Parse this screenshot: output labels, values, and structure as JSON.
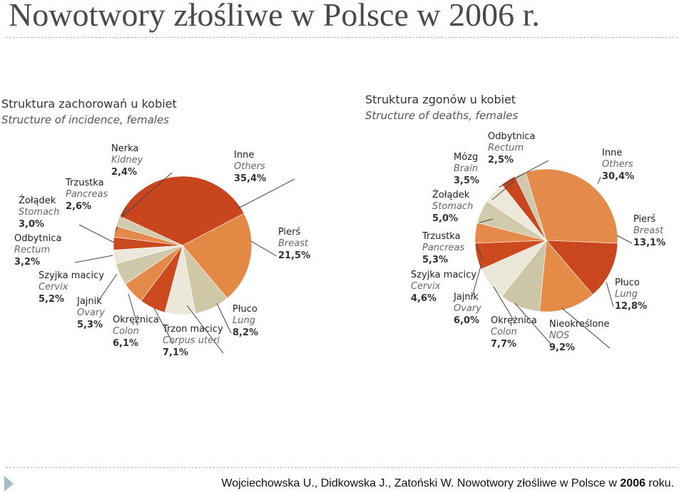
{
  "title": "Nowotwory złośliwe w Polsce w 2006 r.",
  "citation": {
    "text_before": "Wojciechowska U., Didkowska J., Zatoński W. Nowotwory złośliwe w Polsce w ",
    "year": "2006",
    "text_after": " roku."
  },
  "chart_data": [
    {
      "type": "pie",
      "title": "Struktura zachorowań u kobiet",
      "subtitle": "Structure of incidence, females",
      "legend": "none",
      "start_category": "Inne",
      "direction": "clockwise",
      "slices": [
        {
          "pl": "Inne",
          "en": "Others",
          "value": 35.4,
          "label": "35,4%",
          "color": "#c8451e"
        },
        {
          "pl": "Pierś",
          "en": "Breast",
          "value": 21.5,
          "label": "21,5%",
          "color": "#e48845"
        },
        {
          "pl": "Płuco",
          "en": "Lung",
          "value": 8.2,
          "label": "8,2%",
          "color": "#cfc7a6"
        },
        {
          "pl": "Trzon macicy",
          "en": "Corpus uteri",
          "value": 7.1,
          "label": "7,1%",
          "color": "#ebe7d9"
        },
        {
          "pl": "Okrężnica",
          "en": "Colon",
          "value": 6.1,
          "label": "6,1%",
          "color": "#cc4a1d"
        },
        {
          "pl": "Jajnik",
          "en": "Ovary",
          "value": 5.3,
          "label": "5,3%",
          "color": "#e5894a"
        },
        {
          "pl": "Szyjka macicy",
          "en": "Cervix",
          "value": 5.2,
          "label": "5,2%",
          "color": "#cfc9ab"
        },
        {
          "pl": "Odbytnica",
          "en": "Rectum",
          "value": 3.2,
          "label": "3,2%",
          "color": "#ebe7da"
        },
        {
          "pl": "Żołądek",
          "en": "Stomach",
          "value": 3.0,
          "label": "3,0%",
          "color": "#c84a1e"
        },
        {
          "pl": "Trzustka",
          "en": "Pancreas",
          "value": 2.6,
          "label": "2,6%",
          "color": "#e48a4c"
        },
        {
          "pl": "Nerka",
          "en": "Kidney",
          "value": 2.4,
          "label": "2,4%",
          "color": "#d3cbb0"
        }
      ]
    },
    {
      "type": "pie",
      "title": "Struktura zgonów u kobiet",
      "subtitle": "Structure of deaths, females",
      "legend": "none",
      "start_category": "Inne",
      "direction": "clockwise",
      "slices": [
        {
          "pl": "Inne",
          "en": "Others",
          "value": 30.4,
          "label": "30,4%",
          "color": "#e48a4a"
        },
        {
          "pl": "Pierś",
          "en": "Breast",
          "value": 13.1,
          "label": "13,1%",
          "color": "#c9461e"
        },
        {
          "pl": "Płuco",
          "en": "Lung",
          "value": 12.8,
          "label": "12,8%",
          "color": "#e68b47"
        },
        {
          "pl": "Nieokreślone",
          "en": "NOS",
          "value": 9.2,
          "label": "9,2%",
          "color": "#cdc6a6"
        },
        {
          "pl": "Okrężnica",
          "en": "Colon",
          "value": 7.7,
          "label": "7,7%",
          "color": "#ebe7d8"
        },
        {
          "pl": "Jajnik",
          "en": "Ovary",
          "value": 6.0,
          "label": "6,0%",
          "color": "#cc4a1e"
        },
        {
          "pl": "Szyjka macicy",
          "en": "Cervix",
          "value": 4.6,
          "label": "4,6%",
          "color": "#e68a4c"
        },
        {
          "pl": "Trzustka",
          "en": "Pancreas",
          "value": 5.3,
          "label": "5,3%",
          "color": "#d1caac"
        },
        {
          "pl": "Żołądek",
          "en": "Stomach",
          "value": 5.0,
          "label": "5,0%",
          "color": "#ece8da"
        },
        {
          "pl": "Mózg",
          "en": "Brain",
          "value": 3.5,
          "label": "3,5%",
          "color": "#c9461e"
        },
        {
          "pl": "Odbytnica",
          "en": "Rectum",
          "value": 2.5,
          "label": "2,5%",
          "color": "#cfc8aa"
        }
      ]
    }
  ]
}
